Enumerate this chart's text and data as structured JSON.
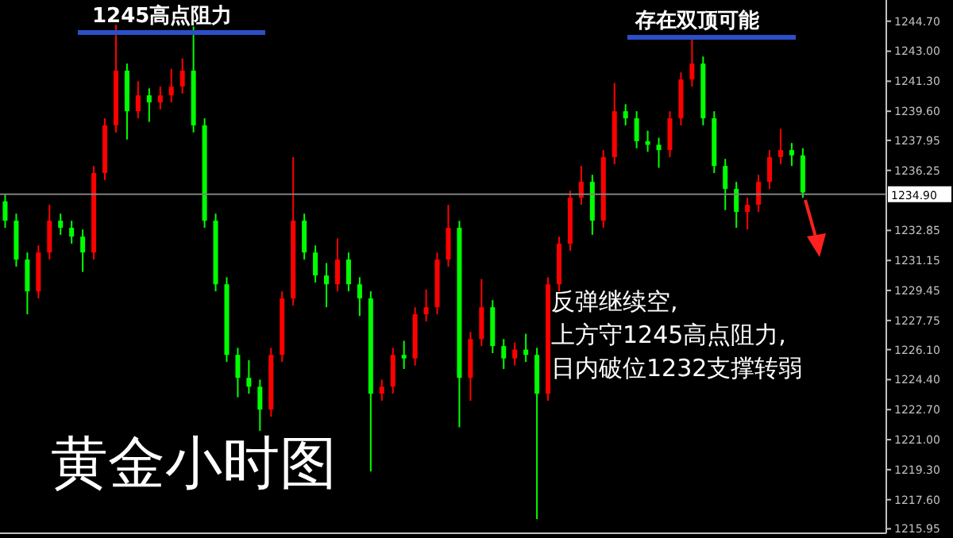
{
  "chart_data": {
    "type": "candlestick",
    "title": "黄金小时图",
    "annotations": [
      "1245高点阻力",
      "存在双顶可能",
      "反弹继续空,\n上方守1245高点阻力,\n日内破位1232支撑转弱"
    ],
    "categories": [
      null,
      null,
      null,
      null,
      null,
      null,
      null,
      null,
      null,
      null,
      null,
      null,
      null,
      null,
      null,
      null,
      null,
      null,
      null,
      null,
      null,
      null,
      null,
      null,
      null,
      null,
      null,
      null,
      null,
      null,
      null,
      null,
      null,
      null,
      null,
      null,
      null,
      null,
      null,
      null,
      null,
      null,
      null,
      null,
      null,
      null,
      null,
      null,
      null,
      null,
      null,
      null,
      null,
      null,
      null,
      null,
      null,
      null,
      null,
      null,
      null,
      null,
      null,
      null,
      null,
      null,
      null,
      null,
      null,
      null,
      null,
      null,
      null,
      null,
      null,
      null,
      null,
      null,
      null,
      null
    ],
    "ohlc": [
      [
        1234.5,
        1234.9,
        1233.0,
        1233.4
      ],
      [
        1233.4,
        1233.8,
        1230.8,
        1231.2
      ],
      [
        1231.2,
        1231.6,
        1228.1,
        1229.4
      ],
      [
        1229.4,
        1232.0,
        1229.0,
        1231.6
      ],
      [
        1231.6,
        1234.3,
        1231.2,
        1233.4
      ],
      [
        1233.4,
        1233.8,
        1232.6,
        1233.0
      ],
      [
        1233.0,
        1233.4,
        1232.1,
        1232.5
      ],
      [
        1232.5,
        1232.9,
        1230.5,
        1231.6
      ],
      [
        1231.6,
        1236.5,
        1231.2,
        1236.1
      ],
      [
        1236.1,
        1239.2,
        1235.7,
        1238.8
      ],
      [
        1238.8,
        1244.5,
        1238.4,
        1241.9
      ],
      [
        1241.9,
        1242.3,
        1238.0,
        1239.6
      ],
      [
        1239.6,
        1241.3,
        1239.2,
        1240.5
      ],
      [
        1240.5,
        1240.9,
        1239.0,
        1240.1
      ],
      [
        1240.1,
        1241.0,
        1239.7,
        1240.5
      ],
      [
        1240.5,
        1242.0,
        1240.1,
        1241.0
      ],
      [
        1241.0,
        1242.6,
        1240.6,
        1241.9
      ],
      [
        1241.9,
        1244.4,
        1238.4,
        1238.8
      ],
      [
        1238.8,
        1239.2,
        1233.0,
        1233.4
      ],
      [
        1233.4,
        1233.8,
        1229.4,
        1229.8
      ],
      [
        1229.8,
        1230.2,
        1225.4,
        1225.8
      ],
      [
        1225.8,
        1226.2,
        1223.4,
        1224.5
      ],
      [
        1224.5,
        1225.5,
        1223.6,
        1224.0
      ],
      [
        1224.0,
        1224.4,
        1221.5,
        1222.7
      ],
      [
        1222.7,
        1226.2,
        1222.3,
        1225.8
      ],
      [
        1225.8,
        1229.4,
        1225.4,
        1229.0
      ],
      [
        1229.0,
        1237.0,
        1228.6,
        1233.4
      ],
      [
        1233.4,
        1233.8,
        1231.2,
        1231.6
      ],
      [
        1231.6,
        1232.0,
        1229.9,
        1230.3
      ],
      [
        1230.3,
        1231.0,
        1228.5,
        1229.8
      ],
      [
        1229.8,
        1232.4,
        1229.4,
        1231.2
      ],
      [
        1231.2,
        1231.6,
        1229.4,
        1229.8
      ],
      [
        1229.8,
        1230.2,
        1228.0,
        1229.0
      ],
      [
        1229.0,
        1229.4,
        1219.2,
        1223.6
      ],
      [
        1223.6,
        1224.4,
        1223.2,
        1224.0
      ],
      [
        1224.0,
        1226.2,
        1223.6,
        1225.8
      ],
      [
        1225.8,
        1226.6,
        1225.0,
        1225.6
      ],
      [
        1225.6,
        1228.5,
        1225.2,
        1228.1
      ],
      [
        1228.1,
        1229.5,
        1227.7,
        1228.5
      ],
      [
        1228.5,
        1231.6,
        1228.1,
        1231.2
      ],
      [
        1231.2,
        1234.3,
        1230.8,
        1233.0
      ],
      [
        1233.0,
        1233.4,
        1221.7,
        1224.5
      ],
      [
        1224.5,
        1227.1,
        1223.2,
        1226.7
      ],
      [
        1226.7,
        1230.1,
        1226.3,
        1228.5
      ],
      [
        1228.5,
        1228.9,
        1225.9,
        1226.3
      ],
      [
        1226.3,
        1226.7,
        1225.0,
        1225.6
      ],
      [
        1225.6,
        1226.5,
        1225.2,
        1226.1
      ],
      [
        1226.1,
        1227.0,
        1225.4,
        1225.8
      ],
      [
        1225.8,
        1226.2,
        1216.5,
        1223.6
      ],
      [
        1223.6,
        1230.2,
        1223.2,
        1229.8
      ],
      [
        1229.8,
        1232.5,
        1229.4,
        1232.1
      ],
      [
        1232.1,
        1235.1,
        1231.7,
        1234.7
      ],
      [
        1234.7,
        1236.5,
        1234.3,
        1235.6
      ],
      [
        1235.6,
        1236.0,
        1232.6,
        1233.4
      ],
      [
        1233.4,
        1237.4,
        1233.0,
        1237.0
      ],
      [
        1237.0,
        1241.2,
        1236.6,
        1239.6
      ],
      [
        1239.6,
        1240.0,
        1238.8,
        1239.2
      ],
      [
        1239.2,
        1239.6,
        1237.5,
        1237.9
      ],
      [
        1237.9,
        1238.5,
        1237.3,
        1237.7
      ],
      [
        1237.7,
        1238.1,
        1236.4,
        1237.4
      ],
      [
        1237.4,
        1239.6,
        1237.0,
        1239.2
      ],
      [
        1239.2,
        1241.8,
        1238.8,
        1241.4
      ],
      [
        1241.4,
        1243.8,
        1241.0,
        1242.3
      ],
      [
        1242.3,
        1242.7,
        1238.8,
        1239.2
      ],
      [
        1239.2,
        1239.6,
        1236.1,
        1236.5
      ],
      [
        1236.5,
        1236.9,
        1234.0,
        1235.2
      ],
      [
        1235.2,
        1235.6,
        1233.0,
        1233.9
      ],
      [
        1233.9,
        1234.7,
        1232.9,
        1234.3
      ],
      [
        1234.3,
        1236.0,
        1233.9,
        1235.6
      ],
      [
        1235.6,
        1237.4,
        1235.2,
        1237.0
      ],
      [
        1237.0,
        1238.6,
        1236.6,
        1237.4
      ],
      [
        1237.4,
        1237.8,
        1236.5,
        1237.1
      ],
      [
        1237.1,
        1237.5,
        1234.7,
        1235.0
      ],
      null,
      null,
      null,
      null,
      null,
      null,
      null
    ],
    "colors": [
      "#00ff00",
      "#00ff00",
      "#00ff00",
      "#ff0000",
      "#ff0000",
      "#00ff00",
      "#00ff00",
      "#00ff00",
      "#ff0000",
      "#ff0000",
      "#ff0000",
      "#00ff00",
      "#ff0000",
      "#00ff00",
      "#ff0000",
      "#ff0000",
      "#ff0000",
      "#00ff00",
      "#00ff00",
      "#00ff00",
      "#00ff00",
      "#00ff00",
      "#00ff00",
      "#00ff00",
      "#ff0000",
      "#ff0000",
      "#ff0000",
      "#00ff00",
      "#00ff00",
      "#00ff00",
      "#ff0000",
      "#00ff00",
      "#00ff00",
      "#00ff00",
      "#ff0000",
      "#ff0000",
      "#00ff00",
      "#ff0000",
      "#ff0000",
      "#ff0000",
      "#ff0000",
      "#00ff00",
      "#ff0000",
      "#ff0000",
      "#00ff00",
      "#00ff00",
      "#ff0000",
      "#00ff00",
      "#00ff00",
      "#ff0000",
      "#ff0000",
      "#ff0000",
      "#ff0000",
      "#00ff00",
      "#ff0000",
      "#ff0000",
      "#00ff00",
      "#00ff00",
      "#00ff00",
      "#00ff00",
      "#ff0000",
      "#ff0000",
      "#ff0000",
      "#00ff00",
      "#00ff00",
      "#00ff00",
      "#00ff00",
      "#ff0000",
      "#ff0000",
      "#ff0000",
      "#ff0000",
      "#00ff00",
      "#00ff00",
      null,
      null,
      null,
      null,
      null,
      null,
      null
    ],
    "ylim": [
      1215.7,
      1245.9
    ],
    "yticks": [
      {
        "value": 1244.7,
        "label": "1244.70"
      },
      {
        "value": 1243.0,
        "label": "1243.00"
      },
      {
        "value": 1241.3,
        "label": "1241.30"
      },
      {
        "value": 1239.6,
        "label": "1239.60"
      },
      {
        "value": 1237.95,
        "label": "1237.95"
      },
      {
        "value": 1236.25,
        "label": "1236.25"
      },
      {
        "value": 1232.85,
        "label": "1232.85"
      },
      {
        "value": 1231.15,
        "label": "1231.15"
      },
      {
        "value": 1229.45,
        "label": "1229.45"
      },
      {
        "value": 1227.75,
        "label": "1227.75"
      },
      {
        "value": 1226.1,
        "label": "1226.10"
      },
      {
        "value": 1224.4,
        "label": "1224.40"
      },
      {
        "value": 1222.7,
        "label": "1222.70"
      },
      {
        "value": 1221.0,
        "label": "1221.00"
      },
      {
        "value": 1219.3,
        "label": "1219.30"
      },
      {
        "value": 1217.6,
        "label": "1217.60"
      },
      {
        "value": 1215.95,
        "label": "1215.95"
      }
    ],
    "ref_lines": [
      {
        "axis": "y",
        "value": 1234.9,
        "label": "1234.90",
        "color": "#808080"
      }
    ],
    "tick_labels": "y",
    "grid": false,
    "legend": false
  }
}
